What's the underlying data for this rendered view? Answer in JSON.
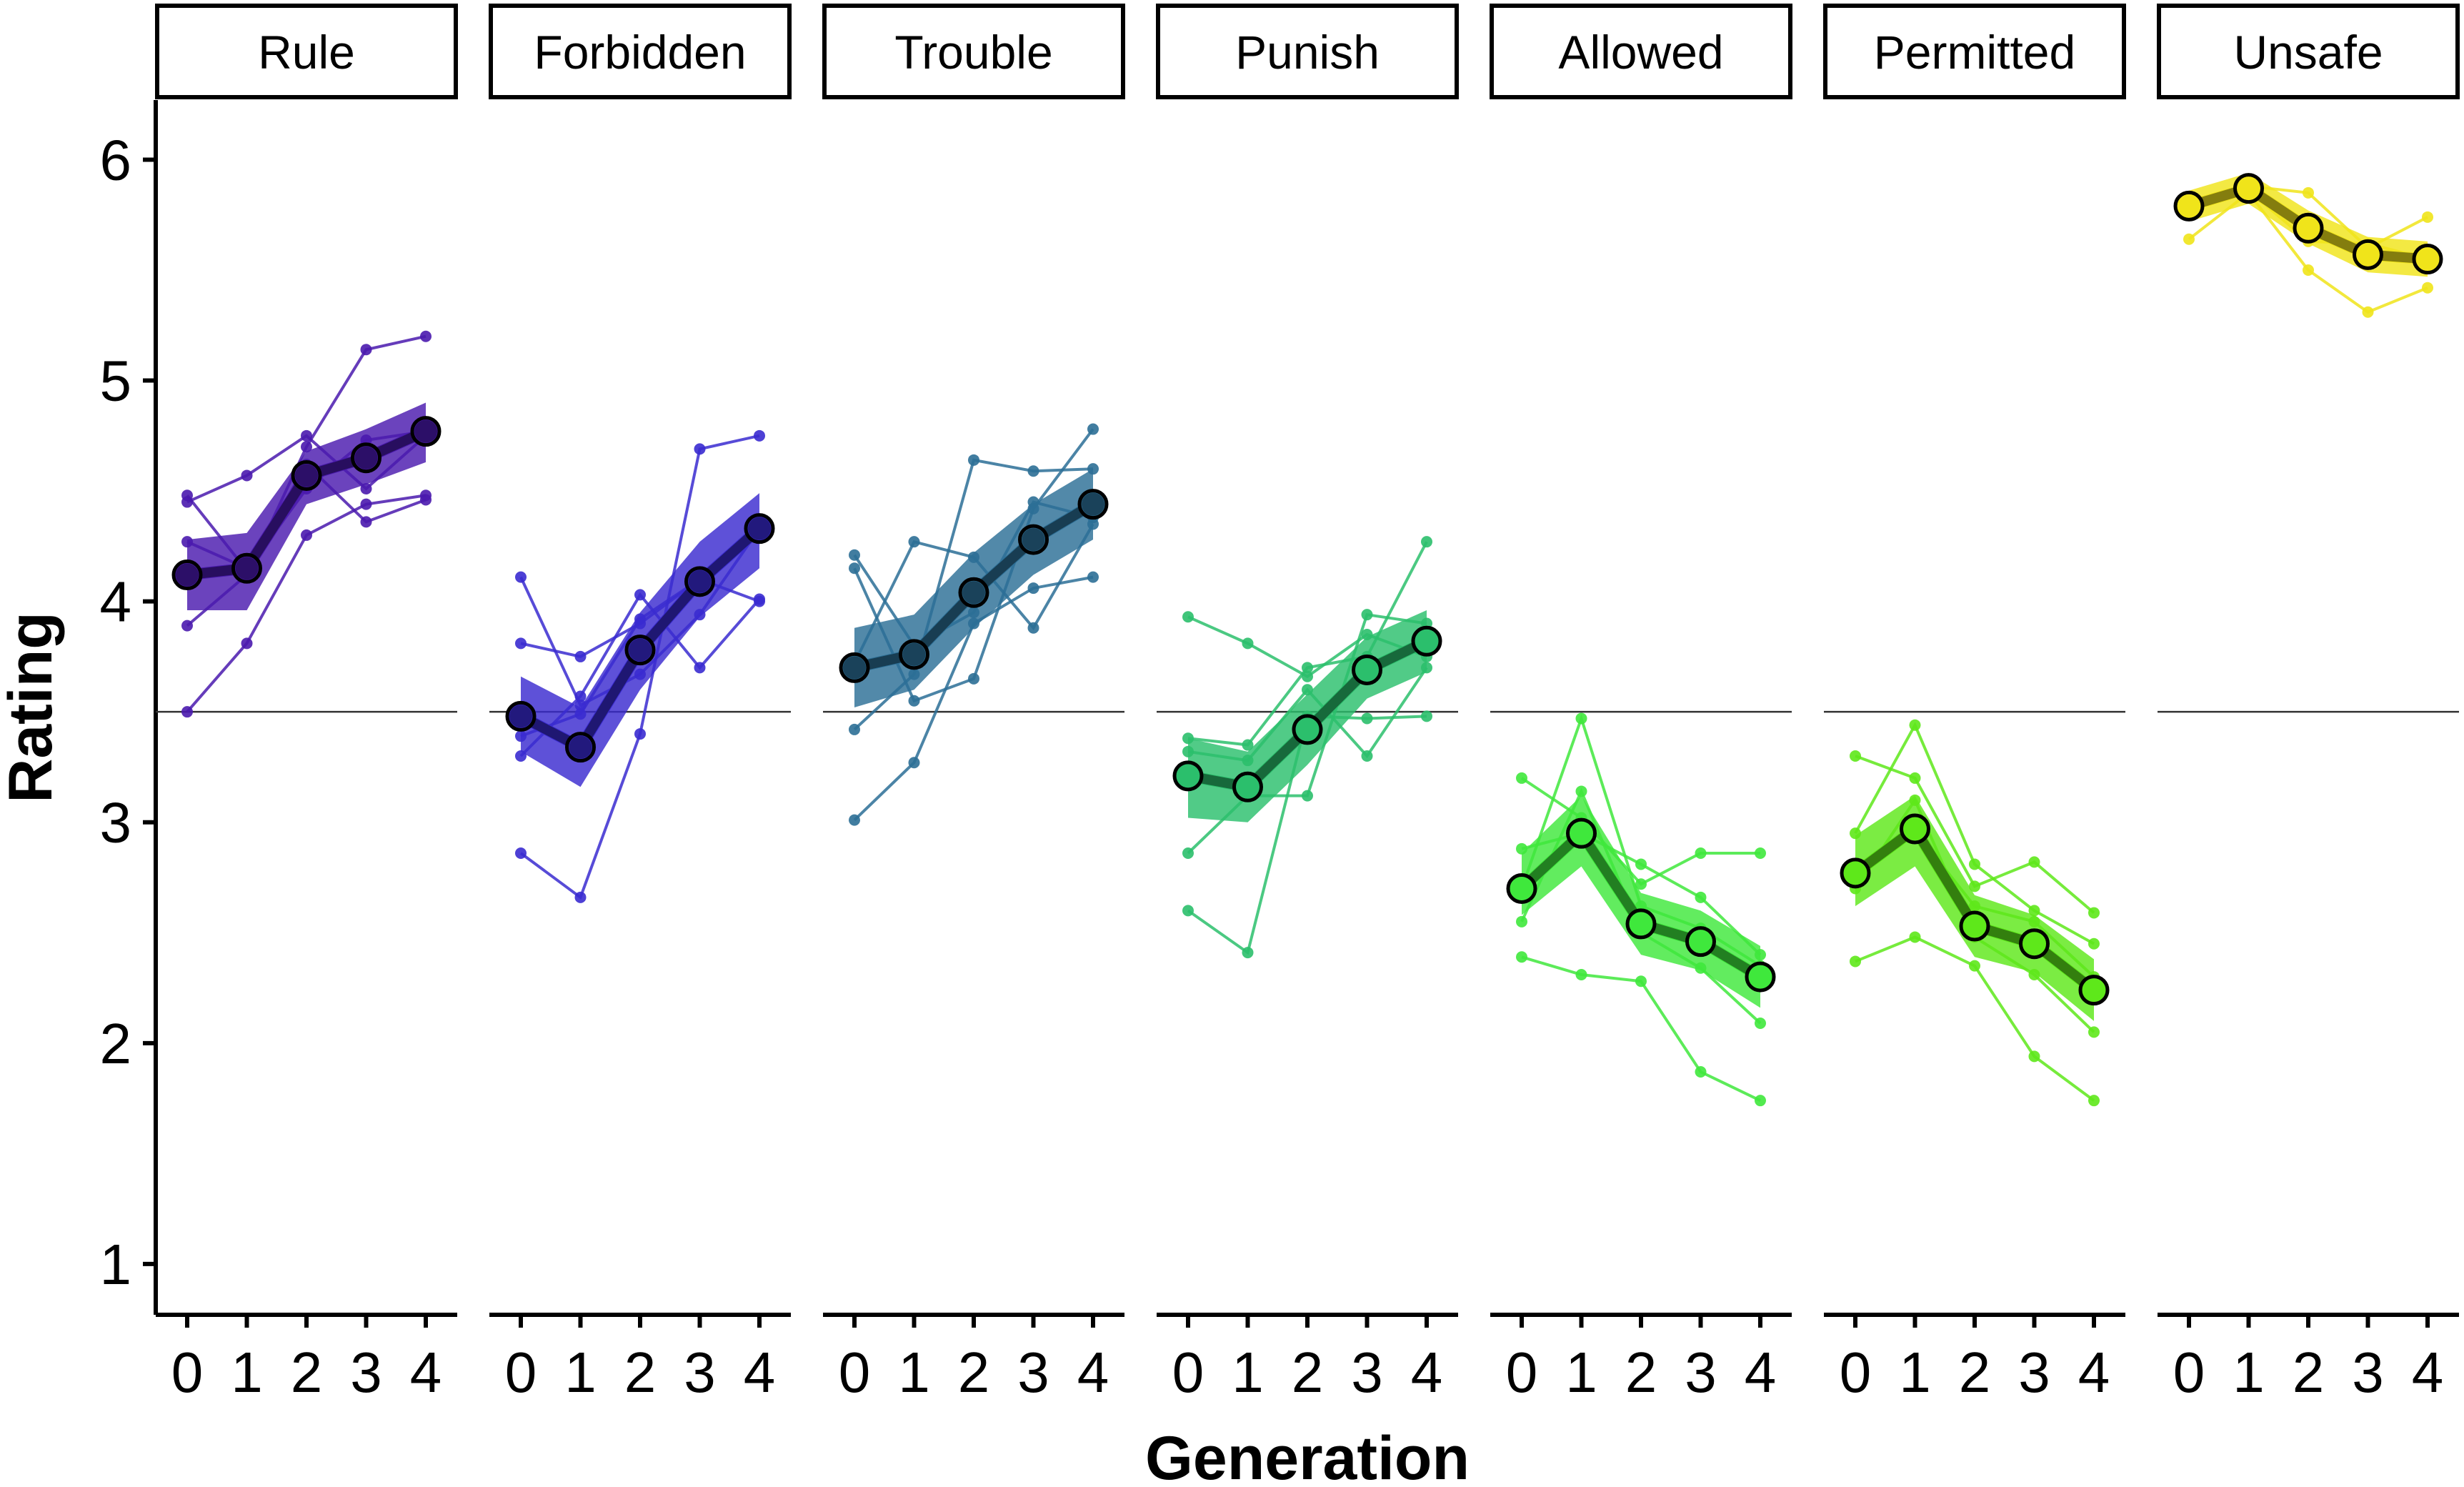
{
  "chart_data": {
    "type": "line",
    "xlabel": "Generation",
    "ylabel": "Rating",
    "ylim": [
      0.77,
      6.27
    ],
    "y_ticks": [
      "1",
      "2",
      "3",
      "4",
      "5",
      "6"
    ],
    "x_ticks": [
      "0",
      "1",
      "2",
      "3",
      "4"
    ],
    "reference_line": 3.5,
    "grid": false,
    "legend": "none",
    "panels": [
      {
        "label": "Rule",
        "color": "#4A1AAE",
        "mean": [
          4.12,
          4.15,
          4.57,
          4.65,
          4.77
        ],
        "band_low": [
          3.96,
          3.96,
          4.44,
          4.53,
          4.63
        ],
        "band_high": [
          4.28,
          4.31,
          4.68,
          4.78,
          4.9
        ],
        "chains": [
          [
            3.5,
            3.81,
            4.3,
            4.44,
            4.48
          ],
          [
            3.89,
            4.12,
            4.7,
            5.14,
            5.2
          ],
          [
            4.27,
            4.15,
            4.62,
            4.36,
            4.46
          ],
          [
            4.45,
            4.57,
            4.75,
            4.51,
            4.75
          ],
          [
            4.48,
            4.14,
            4.51,
            4.73,
            4.77
          ]
        ]
      },
      {
        "label": "Forbidden",
        "color": "#3A2BD0",
        "mean": [
          3.48,
          3.34,
          3.78,
          4.09,
          4.33
        ],
        "band_low": [
          3.32,
          3.16,
          3.6,
          3.93,
          4.15
        ],
        "band_high": [
          3.66,
          3.52,
          3.95,
          4.27,
          4.49
        ],
        "chains": [
          [
            2.86,
            2.66,
            3.4,
            4.69,
            4.75
          ],
          [
            3.3,
            3.57,
            4.03,
            3.7,
            4.01
          ],
          [
            3.39,
            3.49,
            3.92,
            4.1,
            4.0
          ],
          [
            3.81,
            3.75,
            3.9,
            4.1,
            4.35
          ],
          [
            4.11,
            3.53,
            3.67,
            3.94,
            4.33
          ]
        ]
      },
      {
        "label": "Trouble",
        "color": "#2C6F96",
        "mean": [
          3.7,
          3.76,
          4.04,
          4.28,
          4.44
        ],
        "band_low": [
          3.52,
          3.6,
          3.88,
          4.12,
          4.28
        ],
        "band_high": [
          3.88,
          3.94,
          4.22,
          4.44,
          4.6
        ],
        "chains": [
          [
            3.01,
            3.27,
            3.9,
            4.06,
            4.11
          ],
          [
            3.42,
            3.67,
            4.64,
            4.59,
            4.6
          ],
          [
            3.72,
            4.27,
            4.2,
            3.88,
            4.35
          ],
          [
            4.15,
            3.55,
            3.65,
            4.42,
            4.78
          ],
          [
            4.21,
            3.8,
            3.95,
            4.45,
            4.38
          ]
        ]
      },
      {
        "label": "Punish",
        "color": "#2BBF6C",
        "mean": [
          3.21,
          3.16,
          3.42,
          3.69,
          3.82
        ],
        "band_low": [
          3.02,
          3.0,
          3.26,
          3.56,
          3.68
        ],
        "band_high": [
          3.38,
          3.32,
          3.58,
          3.84,
          3.96
        ],
        "chains": [
          [
            2.6,
            2.41,
            3.48,
            3.47,
            3.48
          ],
          [
            2.86,
            3.12,
            3.12,
            3.94,
            3.9
          ],
          [
            3.32,
            3.28,
            3.6,
            3.3,
            3.7
          ],
          [
            3.38,
            3.35,
            3.7,
            3.75,
            4.27
          ],
          [
            3.93,
            3.81,
            3.66,
            3.85,
            3.75
          ]
        ]
      },
      {
        "label": "Allowed",
        "color": "#3FE83C",
        "mean": [
          2.7,
          2.95,
          2.54,
          2.46,
          2.3
        ],
        "band_low": [
          2.58,
          2.8,
          2.4,
          2.33,
          2.16
        ],
        "band_high": [
          2.86,
          3.12,
          2.68,
          2.6,
          2.44
        ],
        "chains": [
          [
            2.39,
            2.31,
            2.28,
            1.87,
            1.74
          ],
          [
            2.55,
            3.14,
            2.5,
            2.34,
            2.09
          ],
          [
            2.7,
            3.47,
            2.62,
            2.52,
            2.35
          ],
          [
            2.88,
            2.95,
            2.81,
            2.66,
            2.4
          ],
          [
            3.2,
            3.02,
            2.72,
            2.86,
            2.86
          ]
        ]
      },
      {
        "label": "Permitted",
        "color": "#5EE81A",
        "mean": [
          2.77,
          2.97,
          2.53,
          2.45,
          2.24
        ],
        "band_low": [
          2.62,
          2.8,
          2.39,
          2.32,
          2.1
        ],
        "band_high": [
          2.94,
          3.12,
          2.67,
          2.58,
          2.38
        ],
        "chains": [
          [
            2.37,
            2.48,
            2.35,
            1.94,
            1.74
          ],
          [
            2.7,
            3.1,
            2.48,
            2.31,
            2.05
          ],
          [
            2.8,
            2.96,
            2.62,
            2.55,
            2.3
          ],
          [
            2.95,
            3.44,
            2.81,
            2.6,
            2.45
          ],
          [
            3.3,
            3.2,
            2.71,
            2.82,
            2.59
          ]
        ]
      },
      {
        "label": "Unsafe",
        "color": "#F0E41A",
        "mean": [
          5.79,
          5.87,
          5.69,
          5.57,
          5.55
        ],
        "band_low": [
          5.72,
          5.8,
          5.62,
          5.49,
          5.47
        ],
        "band_high": [
          5.86,
          5.94,
          5.77,
          5.65,
          5.63
        ],
        "chains": [
          [
            5.64,
            5.85,
            5.5,
            5.31,
            5.42
          ],
          [
            5.78,
            5.88,
            5.85,
            5.6,
            5.74
          ],
          [
            5.82,
            5.86,
            5.63,
            5.62,
            5.55
          ]
        ]
      }
    ]
  }
}
